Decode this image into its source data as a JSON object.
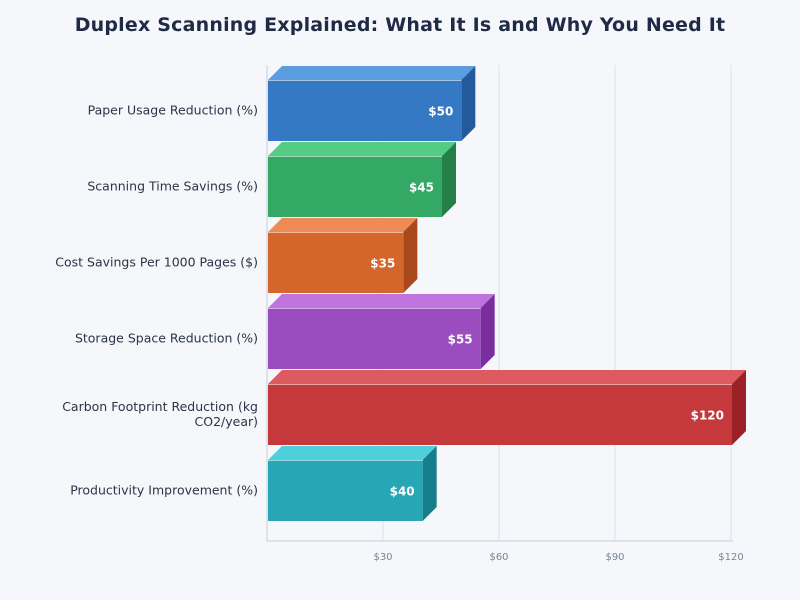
{
  "chart_data": {
    "type": "bar",
    "orientation": "horizontal",
    "title": "Duplex Scanning Explained: What It Is and Why You Need It",
    "xlabel": "",
    "ylabel": "",
    "categories": [
      "Paper Usage Reduction (%)",
      "Scanning Time Savings (%)",
      "Cost Savings Per 1000 Pages ($)",
      "Storage Space Reduction (%)",
      "Carbon Footprint Reduction (kg CO2/year)",
      "Productivity Improvement (%)"
    ],
    "category_lines": [
      [
        "Paper Usage Reduction (%)"
      ],
      [
        "Scanning Time Savings (%)"
      ],
      [
        "Cost Savings Per 1000 Pages ($)"
      ],
      [
        "Storage Space Reduction (%)"
      ],
      [
        "Carbon Footprint Reduction (kg",
        "CO2/year)"
      ],
      [
        "Productivity Improvement (%)"
      ]
    ],
    "values": [
      50,
      45,
      35,
      55,
      120,
      40
    ],
    "data_labels": [
      "$50",
      "$45",
      "$35",
      "$55",
      "$120",
      "$40"
    ],
    "colors": [
      "#3578c4",
      "#34a865",
      "#d4652b",
      "#9b4dbf",
      "#c5393d",
      "#27a6b5"
    ],
    "top_colors": [
      "#5b9de0",
      "#55cc85",
      "#ee8a55",
      "#bf74dd",
      "#dd5b60",
      "#4ecfdc"
    ],
    "side_colors": [
      "#245a9c",
      "#248048",
      "#a8481b",
      "#7a2e9e",
      "#9a2226",
      "#167e8a"
    ],
    "xlim": [
      0,
      120
    ],
    "x_ticks": [
      30,
      60,
      90,
      120
    ],
    "x_tick_labels": [
      "$30",
      "$60",
      "$90",
      "$120"
    ],
    "grid": true,
    "legend": "none"
  }
}
